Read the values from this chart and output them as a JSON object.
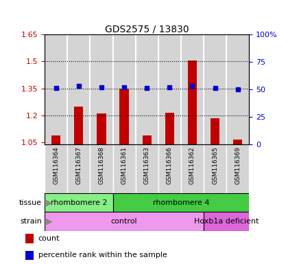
{
  "title": "GDS2575 / 13830",
  "samples": [
    "GSM116364",
    "GSM116367",
    "GSM116368",
    "GSM116361",
    "GSM116363",
    "GSM116366",
    "GSM116362",
    "GSM116365",
    "GSM116369"
  ],
  "bar_values": [
    1.09,
    1.25,
    1.21,
    1.35,
    1.09,
    1.215,
    1.505,
    1.185,
    1.065
  ],
  "dot_values": [
    51,
    53,
    52,
    52,
    51,
    52,
    53,
    51,
    50
  ],
  "bar_color": "#c00000",
  "dot_color": "#0000cc",
  "ylim_left": [
    1.04,
    1.65
  ],
  "ylim_right": [
    0,
    100
  ],
  "yticks_left": [
    1.05,
    1.2,
    1.35,
    1.5,
    1.65
  ],
  "yticks_right": [
    0,
    25,
    50,
    75,
    100
  ],
  "ytick_labels_left": [
    "1.05",
    "1.2",
    "1.35",
    "1.5",
    "1.65"
  ],
  "ytick_labels_right": [
    "0",
    "25",
    "50",
    "75",
    "100%"
  ],
  "hlines": [
    1.2,
    1.35,
    1.5
  ],
  "tissue_labels": [
    {
      "text": "rhombomere 2",
      "start": 0,
      "end": 2,
      "color": "#88ee88"
    },
    {
      "text": "rhombomere 4",
      "start": 3,
      "end": 8,
      "color": "#44cc44"
    }
  ],
  "strain_labels": [
    {
      "text": "control",
      "start": 0,
      "end": 6,
      "color": "#ee99ee"
    },
    {
      "text": "Hoxb1a deficient",
      "start": 7,
      "end": 8,
      "color": "#dd66dd"
    }
  ],
  "col_bg_color": "#d4d4d4",
  "plot_bg": "#ffffff",
  "legend_items": [
    {
      "color": "#c00000",
      "label": "count"
    },
    {
      "color": "#0000cc",
      "label": "percentile rank within the sample"
    }
  ],
  "base_value": 1.04,
  "bar_width": 0.4
}
